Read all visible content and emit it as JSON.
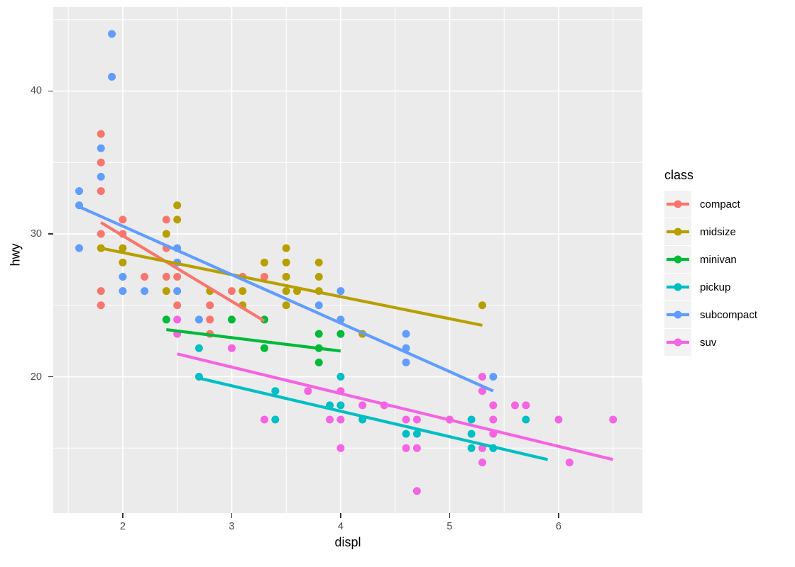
{
  "chart_data": {
    "type": "scatter",
    "title": "",
    "xlabel": "displ",
    "ylabel": "hwy",
    "xlim": [
      1.362,
      6.769
    ],
    "ylim": [
      10.45,
      45.88
    ],
    "x_ticks": [
      2,
      3,
      4,
      5,
      6
    ],
    "y_ticks": [
      20,
      30,
      40
    ],
    "x_minor_gridlines": [
      1.5,
      2.5,
      3.5,
      4.5,
      5.5,
      6.5
    ],
    "y_minor_gridlines": [
      15,
      25,
      35,
      45
    ],
    "grid": "white major and minor gridlines on grey panel",
    "panel_color": "#EBEBEB",
    "gridline_color": "#FFFFFF",
    "tick_label_color": "#4D4D4D",
    "legend": {
      "title": "class",
      "position": "right",
      "key_fill": "#F2F2F2"
    },
    "series": [
      {
        "name": "compact",
        "color": "#F8766D",
        "points": [
          [
            1.8,
            37
          ],
          [
            1.8,
            35
          ],
          [
            1.8,
            33
          ],
          [
            1.8,
            30
          ],
          [
            1.8,
            26
          ],
          [
            1.8,
            25
          ],
          [
            2.0,
            31
          ],
          [
            2.0,
            30
          ],
          [
            2.2,
            27
          ],
          [
            2.4,
            31
          ],
          [
            2.4,
            29
          ],
          [
            2.4,
            27
          ],
          [
            2.5,
            27
          ],
          [
            2.5,
            25
          ],
          [
            2.8,
            25
          ],
          [
            2.8,
            24
          ],
          [
            2.8,
            23
          ],
          [
            3.0,
            26
          ],
          [
            3.1,
            27
          ],
          [
            3.3,
            27
          ]
        ],
        "trend_line": [
          [
            1.8,
            30.8
          ],
          [
            3.3,
            23.9
          ]
        ]
      },
      {
        "name": "midsize",
        "color": "#B79F00",
        "points": [
          [
            1.8,
            29
          ],
          [
            2.0,
            29
          ],
          [
            2.0,
            28
          ],
          [
            2.4,
            30
          ],
          [
            2.4,
            26
          ],
          [
            2.5,
            32
          ],
          [
            2.5,
            31
          ],
          [
            2.8,
            26
          ],
          [
            3.1,
            26
          ],
          [
            3.1,
            25
          ],
          [
            3.3,
            28
          ],
          [
            3.5,
            29
          ],
          [
            3.5,
            28
          ],
          [
            3.5,
            27
          ],
          [
            3.5,
            26
          ],
          [
            3.5,
            25
          ],
          [
            3.6,
            26
          ],
          [
            3.8,
            28
          ],
          [
            3.8,
            27
          ],
          [
            3.8,
            26
          ],
          [
            4.2,
            23
          ],
          [
            5.3,
            25
          ]
        ],
        "trend_line": [
          [
            1.8,
            29.0
          ],
          [
            5.3,
            23.6
          ]
        ]
      },
      {
        "name": "minivan",
        "color": "#00BA38",
        "points": [
          [
            2.4,
            24
          ],
          [
            3.0,
            24
          ],
          [
            3.3,
            24
          ],
          [
            3.3,
            22
          ],
          [
            3.8,
            23
          ],
          [
            3.8,
            22
          ],
          [
            3.8,
            21
          ],
          [
            4.0,
            23
          ]
        ],
        "trend_line": [
          [
            2.4,
            23.3
          ],
          [
            4.0,
            21.8
          ]
        ]
      },
      {
        "name": "pickup",
        "color": "#00BFC4",
        "points": [
          [
            2.7,
            22
          ],
          [
            2.7,
            20
          ],
          [
            3.4,
            19
          ],
          [
            3.4,
            17
          ],
          [
            3.9,
            18
          ],
          [
            4.0,
            20
          ],
          [
            4.0,
            18
          ],
          [
            4.2,
            17
          ],
          [
            4.6,
            16
          ],
          [
            4.7,
            16
          ],
          [
            5.2,
            17
          ],
          [
            5.2,
            16
          ],
          [
            5.2,
            15
          ],
          [
            5.4,
            15
          ],
          [
            5.7,
            17
          ]
        ],
        "trend_line": [
          [
            2.7,
            19.9
          ],
          [
            5.9,
            14.2
          ]
        ]
      },
      {
        "name": "subcompact",
        "color": "#619CFF",
        "points": [
          [
            1.6,
            33
          ],
          [
            1.6,
            32
          ],
          [
            1.6,
            29
          ],
          [
            1.8,
            36
          ],
          [
            1.8,
            34
          ],
          [
            1.9,
            44
          ],
          [
            1.9,
            41
          ],
          [
            2.0,
            27
          ],
          [
            2.0,
            26
          ],
          [
            2.2,
            26
          ],
          [
            2.5,
            29
          ],
          [
            2.5,
            28
          ],
          [
            2.5,
            26
          ],
          [
            2.7,
            24
          ],
          [
            3.8,
            25
          ],
          [
            4.0,
            26
          ],
          [
            4.0,
            24
          ],
          [
            4.6,
            23
          ],
          [
            4.6,
            22
          ],
          [
            4.6,
            21
          ],
          [
            5.4,
            20
          ]
        ],
        "trend_line": [
          [
            1.6,
            31.9
          ],
          [
            5.4,
            19.0
          ]
        ]
      },
      {
        "name": "suv",
        "color": "#F564E3",
        "points": [
          [
            2.5,
            24
          ],
          [
            2.5,
            23
          ],
          [
            3.0,
            22
          ],
          [
            3.3,
            17
          ],
          [
            3.7,
            19
          ],
          [
            3.9,
            17
          ],
          [
            4.0,
            19
          ],
          [
            4.0,
            17
          ],
          [
            4.0,
            15
          ],
          [
            4.2,
            18
          ],
          [
            4.4,
            18
          ],
          [
            4.6,
            17
          ],
          [
            4.6,
            15
          ],
          [
            4.7,
            17
          ],
          [
            4.7,
            15
          ],
          [
            4.7,
            12
          ],
          [
            5.0,
            17
          ],
          [
            5.3,
            20
          ],
          [
            5.3,
            19
          ],
          [
            5.3,
            15
          ],
          [
            5.3,
            14
          ],
          [
            5.4,
            18
          ],
          [
            5.4,
            17
          ],
          [
            5.4,
            16
          ],
          [
            5.6,
            18
          ],
          [
            5.7,
            18
          ],
          [
            6.0,
            17
          ],
          [
            6.1,
            14
          ],
          [
            6.5,
            17
          ]
        ],
        "trend_line": [
          [
            2.5,
            21.6
          ],
          [
            6.5,
            14.2
          ]
        ]
      }
    ]
  }
}
